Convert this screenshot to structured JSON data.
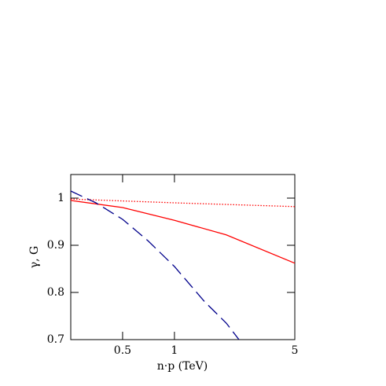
{
  "chart_data": {
    "type": "line",
    "xlabel": "n·p (TeV)",
    "ylabel": "γ, G",
    "xlog": true,
    "xlim": [
      0.25,
      5
    ],
    "xticks": [
      0.5,
      1,
      5
    ],
    "ylim": [
      0.7,
      1.05
    ],
    "yticks": [
      {
        "value": 0.7,
        "label": "0.7"
      },
      {
        "value": 0.8,
        "label": "0.8"
      },
      {
        "value": 0.9,
        "label": "0.9"
      },
      1
    ],
    "series": [
      {
        "color": "#ff0000",
        "style": "solid",
        "x": [
          0.25,
          0.5,
          1,
          2,
          5
        ],
        "values": [
          0.995,
          0.98,
          0.953,
          0.922,
          0.862
        ]
      },
      {
        "color": "#ff0000",
        "style": "dotted",
        "x": [
          0.25,
          1,
          5
        ],
        "values": [
          0.998,
          0.99,
          0.982
        ]
      },
      {
        "color": "#00008b",
        "style": "dashed",
        "x": [
          0.25,
          0.35,
          0.5,
          0.7,
          1,
          1.5,
          2,
          2.37
        ],
        "values": [
          1.015,
          0.99,
          0.955,
          0.91,
          0.855,
          0.78,
          0.735,
          0.7
        ]
      }
    ]
  }
}
